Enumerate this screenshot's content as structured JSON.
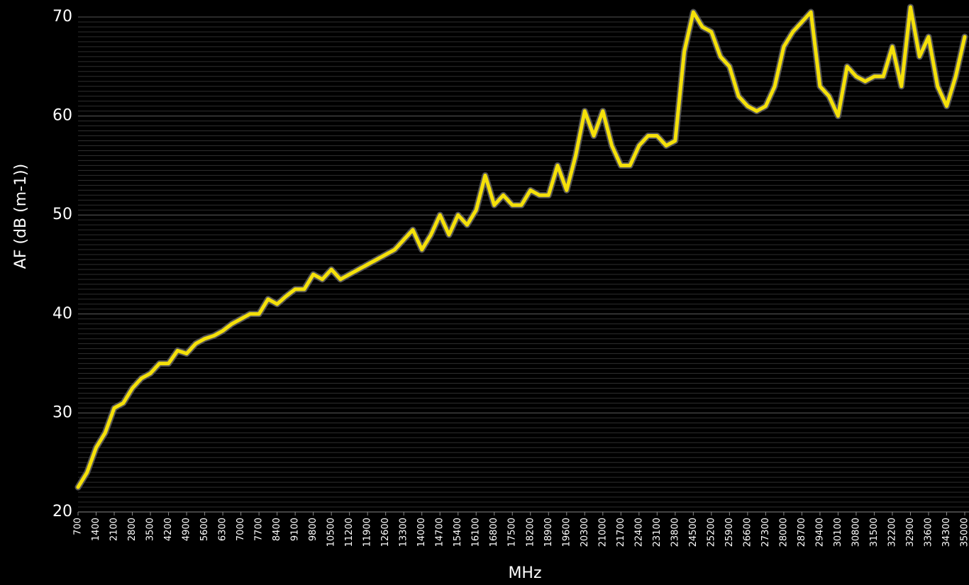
{
  "chart_data": {
    "type": "line",
    "x_label": "MHz",
    "y_label": "AF (dB (m-1))",
    "xlim": [
      700,
      35000
    ],
    "ylim": [
      20,
      70
    ],
    "yticks": [
      20,
      30,
      40,
      50,
      60,
      70
    ],
    "xticks": [
      700,
      1400,
      2100,
      2800,
      3500,
      4200,
      4900,
      5600,
      6300,
      7000,
      7700,
      8400,
      9100,
      9800,
      10500,
      11200,
      11900,
      12600,
      13300,
      14000,
      14700,
      15400,
      16100,
      16800,
      17500,
      18200,
      18900,
      19600,
      20300,
      21000,
      21700,
      22400,
      23100,
      23800,
      24500,
      25200,
      25900,
      26600,
      27300,
      28000,
      28700,
      29400,
      30100,
      30800,
      31500,
      32200,
      32900,
      33600,
      34300,
      35000
    ],
    "grid": true,
    "minor_grid_step": 0.5,
    "series": [
      {
        "color": "#f5e10a",
        "x": [
          700,
          1050,
          1400,
          1750,
          2100,
          2450,
          2800,
          3150,
          3500,
          3850,
          4200,
          4550,
          4900,
          5250,
          5600,
          5950,
          6300,
          6650,
          7000,
          7350,
          7700,
          8050,
          8400,
          8750,
          9100,
          9450,
          9800,
          10150,
          10500,
          10850,
          11200,
          11550,
          11900,
          12250,
          12600,
          12950,
          13300,
          13650,
          14000,
          14350,
          14700,
          15050,
          15400,
          15750,
          16100,
          16450,
          16800,
          17150,
          17500,
          17850,
          18200,
          18550,
          18900,
          19250,
          19600,
          19950,
          20300,
          20650,
          21000,
          21350,
          21700,
          22050,
          22400,
          22750,
          23100,
          23450,
          23800,
          24150,
          24500,
          24850,
          25200,
          25550,
          25900,
          26250,
          26600,
          26950,
          27300,
          27650,
          28000,
          28350,
          28700,
          29050,
          29400,
          29750,
          30100,
          30450,
          30800,
          31150,
          31500,
          31850,
          32200,
          32550,
          32900,
          33250,
          33600,
          33950,
          34300,
          34650,
          35000
        ],
        "values": [
          22.5,
          24,
          26.5,
          28,
          30.5,
          31,
          32.5,
          33.5,
          34,
          35,
          35,
          36.3,
          36,
          37,
          37.5,
          37.8,
          38.3,
          39,
          39.5,
          40,
          40,
          41.5,
          41,
          41.8,
          42.5,
          42.5,
          44,
          43.5,
          44.5,
          43.5,
          44,
          44.5,
          45,
          45.5,
          46,
          46.5,
          47.5,
          48.5,
          46.5,
          48,
          50,
          48,
          50,
          49,
          50.5,
          54,
          51,
          52,
          51,
          51,
          52.5,
          52,
          52,
          55,
          52.5,
          56,
          60.5,
          58,
          60.5,
          57,
          55,
          55,
          57,
          58,
          58,
          57,
          57.5,
          66.5,
          70.5,
          69,
          68.5,
          66,
          65,
          62,
          61,
          60.5,
          61,
          63,
          67,
          68.5,
          69.5,
          70.5,
          63,
          62,
          60,
          65,
          64,
          63.5,
          64,
          64,
          67,
          63,
          71,
          66,
          68,
          63,
          61,
          64,
          68
        ]
      }
    ]
  }
}
